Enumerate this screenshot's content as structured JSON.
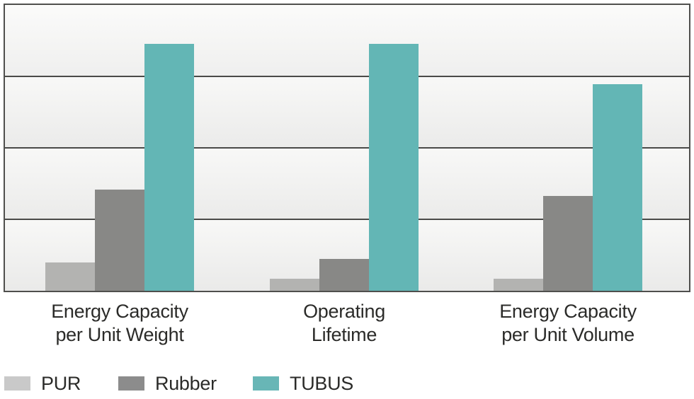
{
  "chart_data": {
    "type": "bar",
    "title": "",
    "xlabel": "",
    "ylabel": "",
    "ylim": [
      0,
      4
    ],
    "gridlines": [
      1,
      2,
      3
    ],
    "grid": true,
    "legend_position": "bottom-left",
    "categories": [
      {
        "line1": "Energy Capacity",
        "line2": "per Unit Weight"
      },
      {
        "line1": "Operating",
        "line2": "Lifetime"
      },
      {
        "line1": "Energy Capacity",
        "line2": "per Unit Volume"
      }
    ],
    "series": [
      {
        "name": "PUR",
        "color": "#b3b3b1",
        "legend_color": "#c9c9c9",
        "values": [
          0.4,
          0.17,
          0.17
        ]
      },
      {
        "name": "Rubber",
        "color": "#888886",
        "legend_color": "#8c8c8c",
        "values": [
          1.42,
          0.45,
          1.33
        ]
      },
      {
        "name": "TUBUS",
        "color": "#63b6b5",
        "legend_color": "#68b6b6",
        "values": [
          3.46,
          3.46,
          2.89
        ]
      }
    ],
    "colors": {
      "plot_border": "#4f4f4d",
      "gridline": "#4a4a48",
      "band_top": "#fbfbfa",
      "band_bottom": "#eaeae9",
      "text": "#2b2b29"
    }
  }
}
